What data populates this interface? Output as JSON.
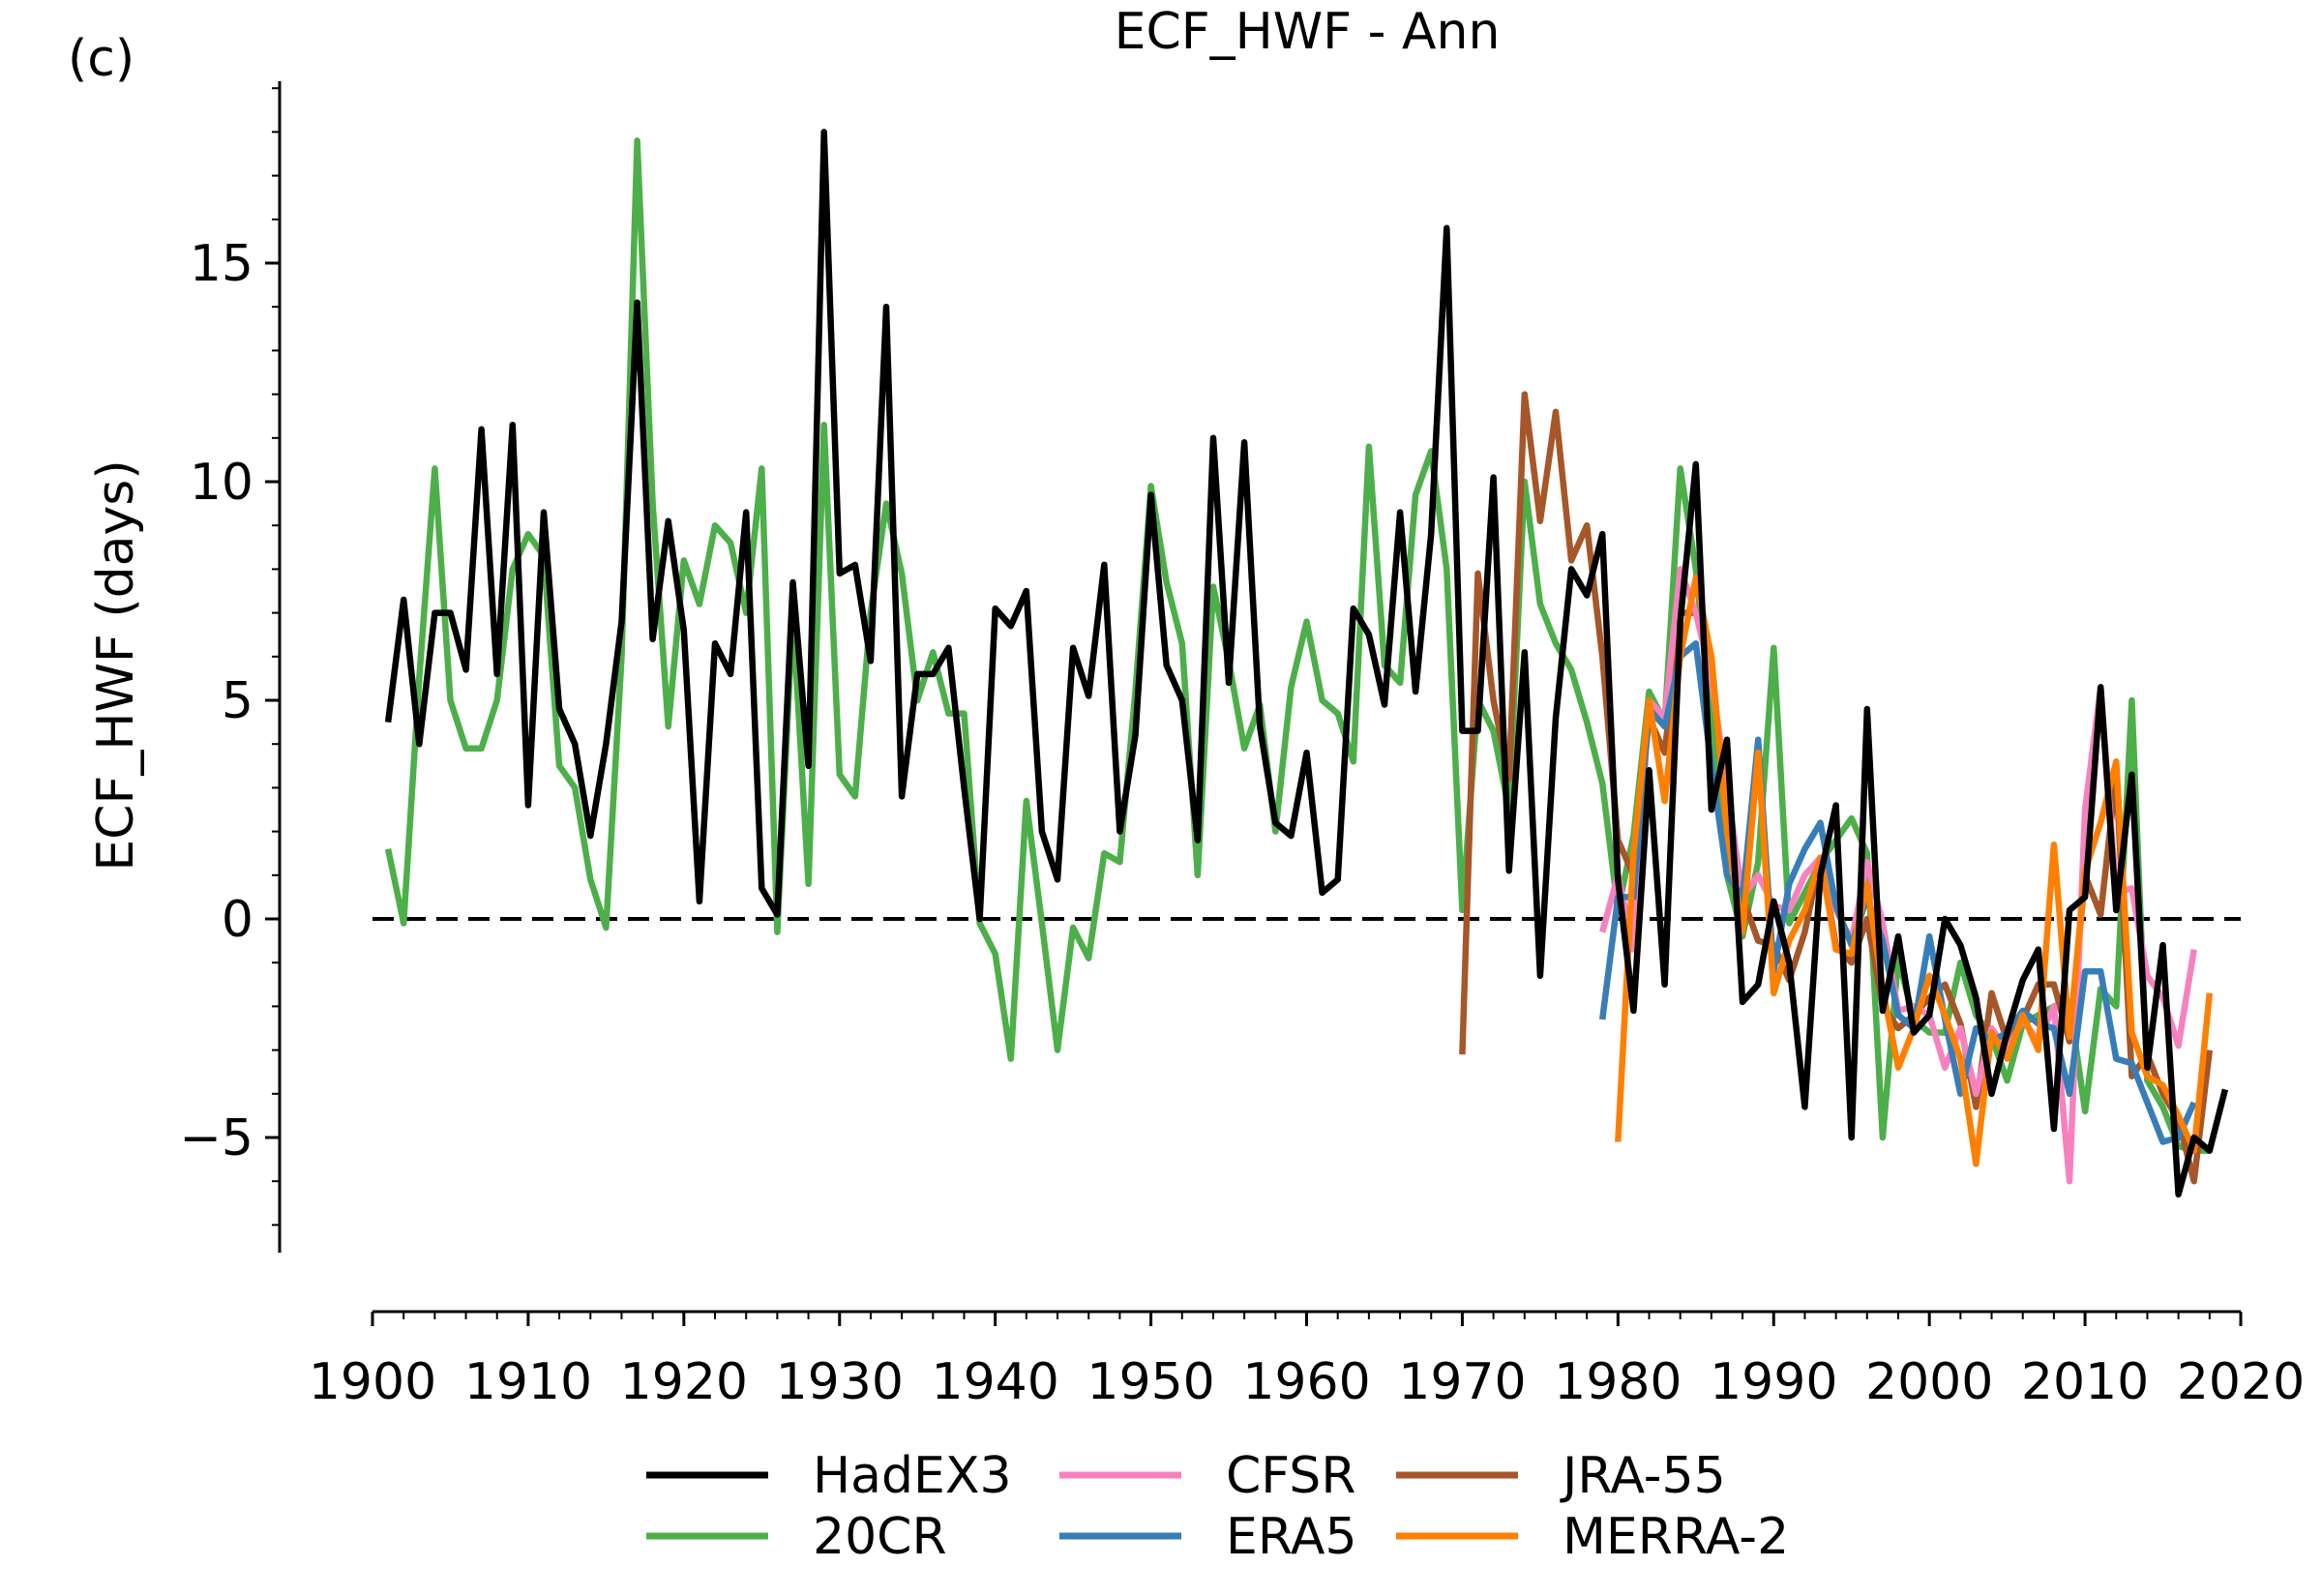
{
  "panel_label": "(c)",
  "chart_data": {
    "type": "line",
    "title": "ECF_HWF - Ann",
    "xlabel": "",
    "ylabel": "ECF_HWF (days)",
    "xlim": [
      1900,
      2020
    ],
    "ylim": [
      -7.5,
      19.5
    ],
    "xticks": [
      1900,
      1910,
      1920,
      1930,
      1940,
      1950,
      1960,
      1970,
      1980,
      1990,
      2000,
      2010,
      2020
    ],
    "yticks": [
      -5,
      0,
      5,
      10,
      15
    ],
    "ytick_labels": [
      "−5",
      "0",
      "5",
      "10",
      "15"
    ],
    "grid": false,
    "legend_position": "bottom-center",
    "reference_line": {
      "y": 0,
      "style": "dashed",
      "color": "#000000"
    },
    "series": [
      {
        "name": "20CR",
        "color": "#4daf4a",
        "start_year": 1901,
        "values": [
          1.6,
          -0.1,
          5.5,
          10.3,
          5.0,
          3.9,
          3.9,
          5.0,
          8.0,
          8.8,
          8.3,
          3.5,
          3.0,
          0.9,
          -0.2,
          6.0,
          17.8,
          9.5,
          4.4,
          8.2,
          7.2,
          9.0,
          8.6,
          7.0,
          10.3,
          -0.3,
          7.0,
          0.8,
          11.3,
          3.3,
          2.8,
          7.0,
          9.5,
          7.9,
          5.0,
          6.1,
          4.7,
          4.7,
          -0.1,
          -0.8,
          -3.2,
          2.7,
          -0.1,
          -3.0,
          -0.2,
          -0.9,
          1.5,
          1.3,
          5.2,
          9.9,
          7.7,
          6.3,
          1.0,
          7.6,
          5.9,
          3.9,
          4.9,
          2.0,
          5.3,
          6.8,
          5.0,
          4.7,
          3.6,
          10.8,
          5.8,
          5.4,
          9.7,
          10.7,
          8.0,
          0.2,
          5.0,
          4.3,
          2.5,
          10.0,
          7.2,
          6.3,
          5.7,
          4.5,
          3.1,
          0.2,
          1.9,
          5.2,
          4.5,
          10.3,
          8.0,
          4.5,
          1.0,
          -0.4,
          1.3,
          6.2,
          -0.1,
          0.6,
          1.3,
          1.8,
          2.3,
          1.5,
          -5.0,
          -0.9,
          -2.3,
          -2.6,
          -2.6,
          -1.0,
          -2.2,
          -2.7,
          -3.7,
          -2.4,
          -2.2,
          -2.0,
          -1.9,
          -4.4,
          -1.6,
          -2.0,
          5.0,
          -3.7,
          -4.3,
          -5.2,
          -5.3,
          -5.3
        ]
      },
      {
        "name": "JRA-55",
        "color": "#a65628",
        "start_year": 1970,
        "values": [
          -3.1,
          7.9,
          5.0,
          3.2,
          12.0,
          9.1,
          11.6,
          8.2,
          9.0,
          6.0,
          1.8,
          1.0,
          4.6,
          3.8,
          7.0,
          7.0,
          6.0,
          2.0,
          0.5,
          -0.5,
          -0.6,
          -1.4,
          -0.3,
          1.4,
          -0.6,
          -1.0,
          0.0,
          -2.0,
          -2.5,
          -2.2,
          -1.8,
          -1.5,
          -2.4,
          -4.3,
          -1.7,
          -2.8,
          -2.3,
          -1.5,
          -1.5,
          -2.8,
          1.0,
          0.1,
          3.3,
          -3.6,
          -3.1,
          -4.0,
          -4.6,
          -6.0,
          -3.0
        ]
      },
      {
        "name": "CFSR",
        "color": "#f781bf",
        "start_year": 1979,
        "values": [
          -0.3,
          1.0,
          -0.7,
          5.0,
          4.6,
          8.0,
          7.0,
          5.5,
          3.0,
          0.5,
          1.0,
          0.3,
          0.2,
          1.0,
          1.4,
          0.2,
          -0.5,
          1.3,
          -0.1,
          -2.1,
          -2.0,
          -2.2,
          -3.4,
          -2.5,
          -4.0,
          -2.5,
          -3.0,
          -2.3,
          -2.8,
          -2.0,
          -6.0,
          2.5,
          5.3,
          0.6,
          0.7,
          -1.3,
          -1.8,
          -2.9,
          -0.7
        ]
      },
      {
        "name": "ERA5",
        "color": "#377eb8",
        "start_year": 1979,
        "values": [
          -2.3,
          0.5,
          0.5,
          4.8,
          4.4,
          6.0,
          6.3,
          3.5,
          1.0,
          0.5,
          4.1,
          -1.2,
          0.8,
          1.6,
          2.2,
          0.3,
          -0.6,
          0.5,
          -0.5,
          -2.2,
          -2.5,
          -0.4,
          -2.3,
          -4.0,
          -2.5,
          -2.8,
          -2.6,
          -2.1,
          -2.4,
          -2.5,
          -4.0,
          -1.2,
          -1.2,
          -3.2,
          -3.3,
          -4.2,
          -5.1,
          -5.0,
          -4.2
        ]
      },
      {
        "name": "MERRA-2",
        "color": "#ff7f00",
        "start_year": 1980,
        "values": [
          -5.1,
          1.5,
          5.0,
          2.7,
          6.0,
          7.8,
          6.0,
          2.0,
          -0.3,
          3.8,
          -1.7,
          -0.5,
          0.2,
          1.4,
          -0.7,
          -0.8,
          0.8,
          -1.6,
          -3.4,
          -2.5,
          -1.3,
          -2.2,
          -3.2,
          -5.6,
          -2.6,
          -3.2,
          -2.2,
          -3.0,
          1.7,
          -2.7,
          1.1,
          2.2,
          3.6,
          -2.6,
          -3.6,
          -3.8,
          -4.5,
          -5.3,
          -1.7
        ]
      },
      {
        "name": "HadEX3",
        "color": "#000000",
        "start_year": 1901,
        "values": [
          4.5,
          7.3,
          4.0,
          7.0,
          7.0,
          5.7,
          11.2,
          5.6,
          11.3,
          2.6,
          9.3,
          4.8,
          4.0,
          1.9,
          4.0,
          6.8,
          14.1,
          6.4,
          9.1,
          6.6,
          0.4,
          6.3,
          5.6,
          9.3,
          0.7,
          0.1,
          7.7,
          3.5,
          18.0,
          7.9,
          8.1,
          5.9,
          14.0,
          2.8,
          5.6,
          5.6,
          6.2,
          3.0,
          0.0,
          7.1,
          6.7,
          7.5,
          2.0,
          0.9,
          6.2,
          5.1,
          8.1,
          2.0,
          4.2,
          9.7,
          5.8,
          5.0,
          1.8,
          11.0,
          5.4,
          10.9,
          4.4,
          2.2,
          1.9,
          3.8,
          0.6,
          0.9,
          7.1,
          6.5,
          4.9,
          9.3,
          5.2,
          8.8,
          15.8,
          4.3,
          4.3,
          10.1,
          1.1,
          6.1,
          -1.3,
          4.6,
          8.0,
          7.4,
          8.8,
          0.9,
          -2.1,
          3.4,
          -1.5,
          6.8,
          10.4,
          2.5,
          4.1,
          -1.9,
          -1.5,
          0.4,
          -1.0,
          -4.3,
          1.0,
          2.6,
          -5.0,
          4.8,
          -2.1,
          -0.4,
          -2.6,
          -2.2,
          0.0,
          -0.6,
          -1.8,
          -4.0,
          -2.6,
          -1.4,
          -0.7,
          -4.8,
          0.2,
          0.5,
          5.3,
          0.2,
          3.3,
          -3.4,
          -0.6,
          -6.3,
          -5.0,
          -5.3,
          -3.9
        ]
      }
    ],
    "legend": [
      {
        "name": "HadEX3",
        "color": "#000000"
      },
      {
        "name": "20CR",
        "color": "#4daf4a"
      },
      {
        "name": "CFSR",
        "color": "#f781bf"
      },
      {
        "name": "ERA5",
        "color": "#377eb8"
      },
      {
        "name": "JRA-55",
        "color": "#a65628"
      },
      {
        "name": "MERRA-2",
        "color": "#ff7f00"
      }
    ]
  }
}
